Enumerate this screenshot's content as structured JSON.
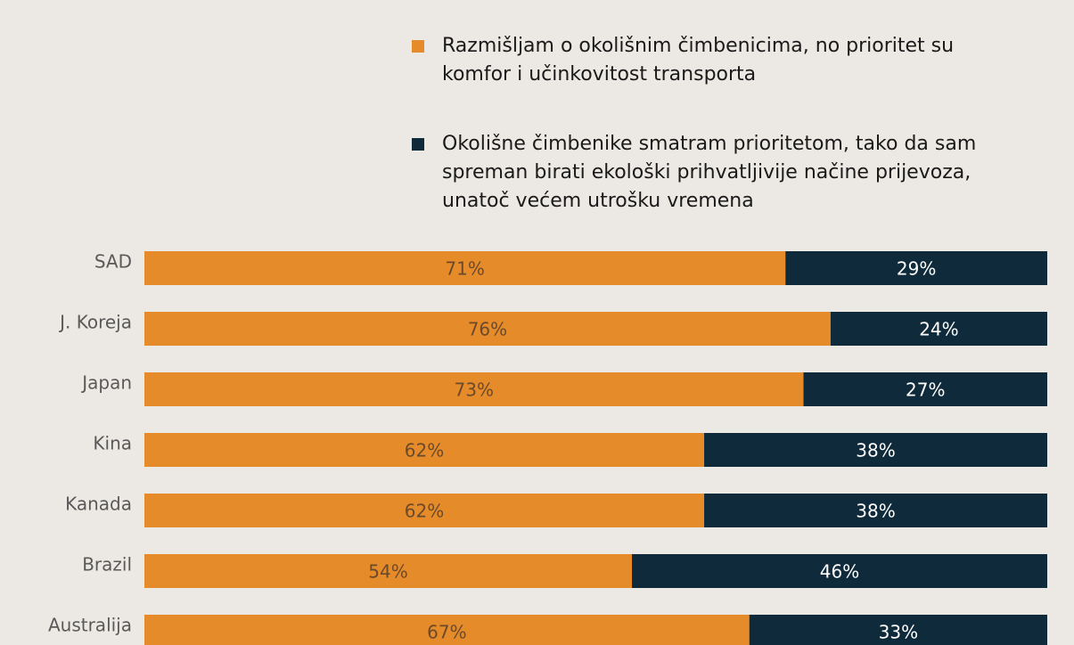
{
  "chart_data": {
    "type": "stacked-bar-horizontal",
    "categories": [
      "SAD",
      "J. Koreja",
      "Japan",
      "Kina",
      "Kanada",
      "Brazil",
      "Australija"
    ],
    "series": [
      {
        "name": "Razmišljam o okolišnim čimbenicima, no prioritet su komfor i učinkovitost transporta",
        "color": "#e58b2a",
        "values": [
          71,
          76,
          73,
          62,
          62,
          54,
          67
        ],
        "value_labels": [
          "71%",
          "76%",
          "73%",
          "62%",
          "62%",
          "54%",
          "67%"
        ]
      },
      {
        "name": "Okolišne čimbenike smatram prioritetom, tako da sam spreman birati ekološki prihvatljivije načine prijevoza, unatoč većem utrošku vremena",
        "color": "#0f2a3a",
        "values": [
          29,
          24,
          27,
          38,
          38,
          46,
          33
        ],
        "value_labels": [
          "29%",
          "24%",
          "27%",
          "38%",
          "38%",
          "46%",
          "33%"
        ]
      }
    ]
  }
}
